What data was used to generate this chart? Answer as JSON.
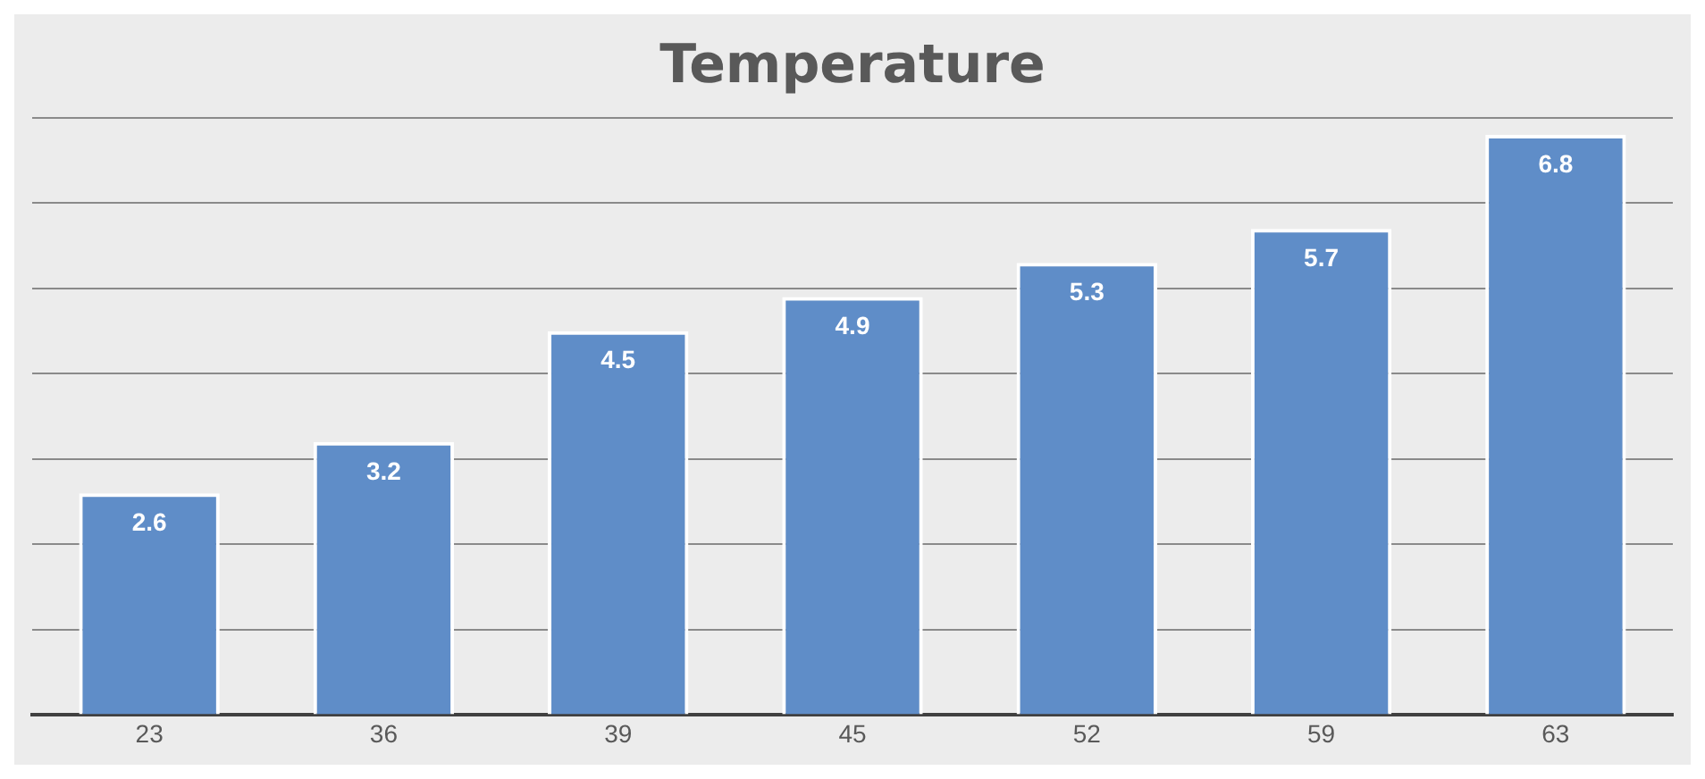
{
  "chart_data": {
    "type": "bar",
    "title": "Temperature",
    "categories": [
      "23",
      "36",
      "39",
      "45",
      "52",
      "59",
      "63"
    ],
    "values": [
      2.6,
      3.2,
      4.5,
      4.9,
      5.3,
      5.7,
      6.8
    ],
    "color": "#5f8dc8",
    "grid": "y",
    "tick_labels": "x",
    "data_labels": true,
    "legend": false
  }
}
